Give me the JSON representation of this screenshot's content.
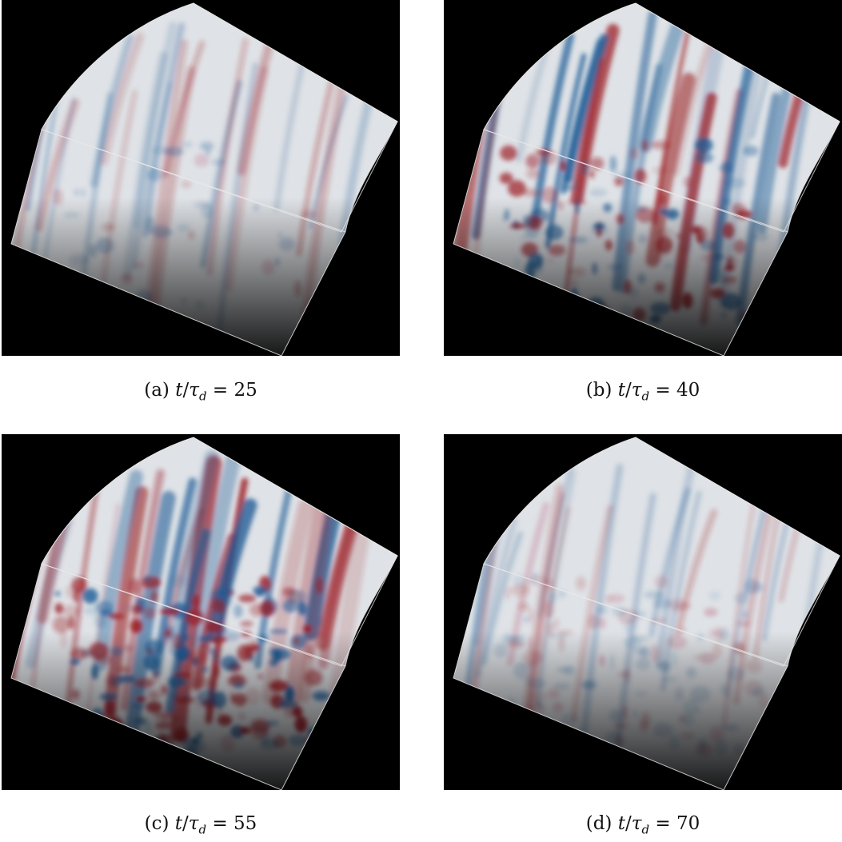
{
  "panels": [
    {
      "id": "a",
      "tag": "(a)",
      "time_value": "25",
      "intensity": 0.25,
      "fine_structure": 0.1
    },
    {
      "id": "b",
      "tag": "(b)",
      "time_value": "40",
      "intensity": 0.9,
      "fine_structure": 0.55
    },
    {
      "id": "c",
      "tag": "(c)",
      "time_value": "55",
      "intensity": 1.0,
      "fine_structure": 0.95
    },
    {
      "id": "d",
      "tag": "(d)",
      "time_value": "70",
      "intensity": 0.15,
      "fine_structure": 0.6
    }
  ],
  "caption_parts": {
    "var_t": "t",
    "slash": "/",
    "var_tau": "τ",
    "sub_d": "d",
    "equals": " = "
  },
  "colormap": {
    "positive": "#9b1b22",
    "negative": "#1d5c96",
    "neutral": "#dfe2e6",
    "background": "#000000",
    "edge": "#e8e8e8"
  }
}
